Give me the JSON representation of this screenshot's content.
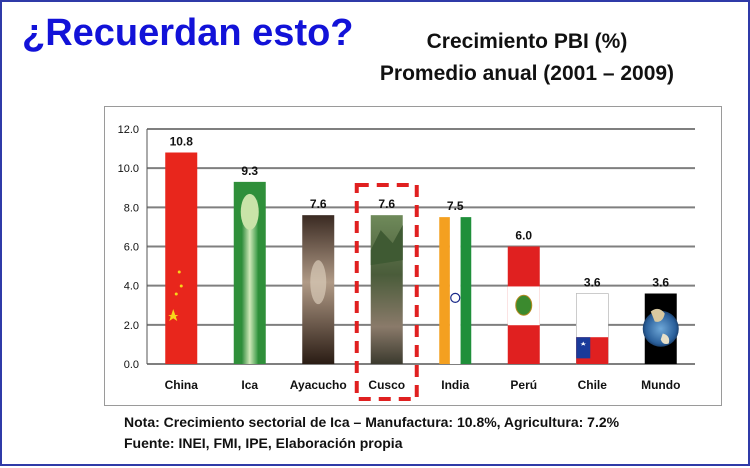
{
  "title": "¿Recuerdan esto?",
  "chart_title_line1": "Crecimiento PBI (%)",
  "chart_title_line2": "Promedio anual (2001 – 2009)",
  "note_line1": "Nota: Crecimiento sectorial de Ica – Manufactura: 10.8%, Agricultura: 7.2%",
  "note_line2": "Fuente: INEI, FMI, IPE, Elaboración propia",
  "highlight_category": "Cusco",
  "colors": {
    "title": "#1212d8",
    "highlight": "#e02020",
    "grid": "#7f7f7f"
  },
  "chart_data": {
    "type": "bar",
    "categories": [
      "China",
      "Ica",
      "Ayacucho",
      "Cusco",
      "India",
      "Perú",
      "Chile",
      "Mundo"
    ],
    "values": [
      10.8,
      9.3,
      7.6,
      7.6,
      7.5,
      6.0,
      3.6,
      3.6
    ],
    "value_labels": [
      "10.8",
      "9.3",
      "7.6",
      "7.6",
      "7.5",
      "6.0",
      "3.6",
      "3.6"
    ],
    "yticks": [
      "0.0",
      "2.0",
      "4.0",
      "6.0",
      "8.0",
      "10.0",
      "12.0"
    ],
    "ylim": [
      0,
      12
    ],
    "grid": true,
    "title": "Crecimiento PBI (%) Promedio anual (2001 – 2009)",
    "xlabel": "",
    "ylabel": ""
  }
}
